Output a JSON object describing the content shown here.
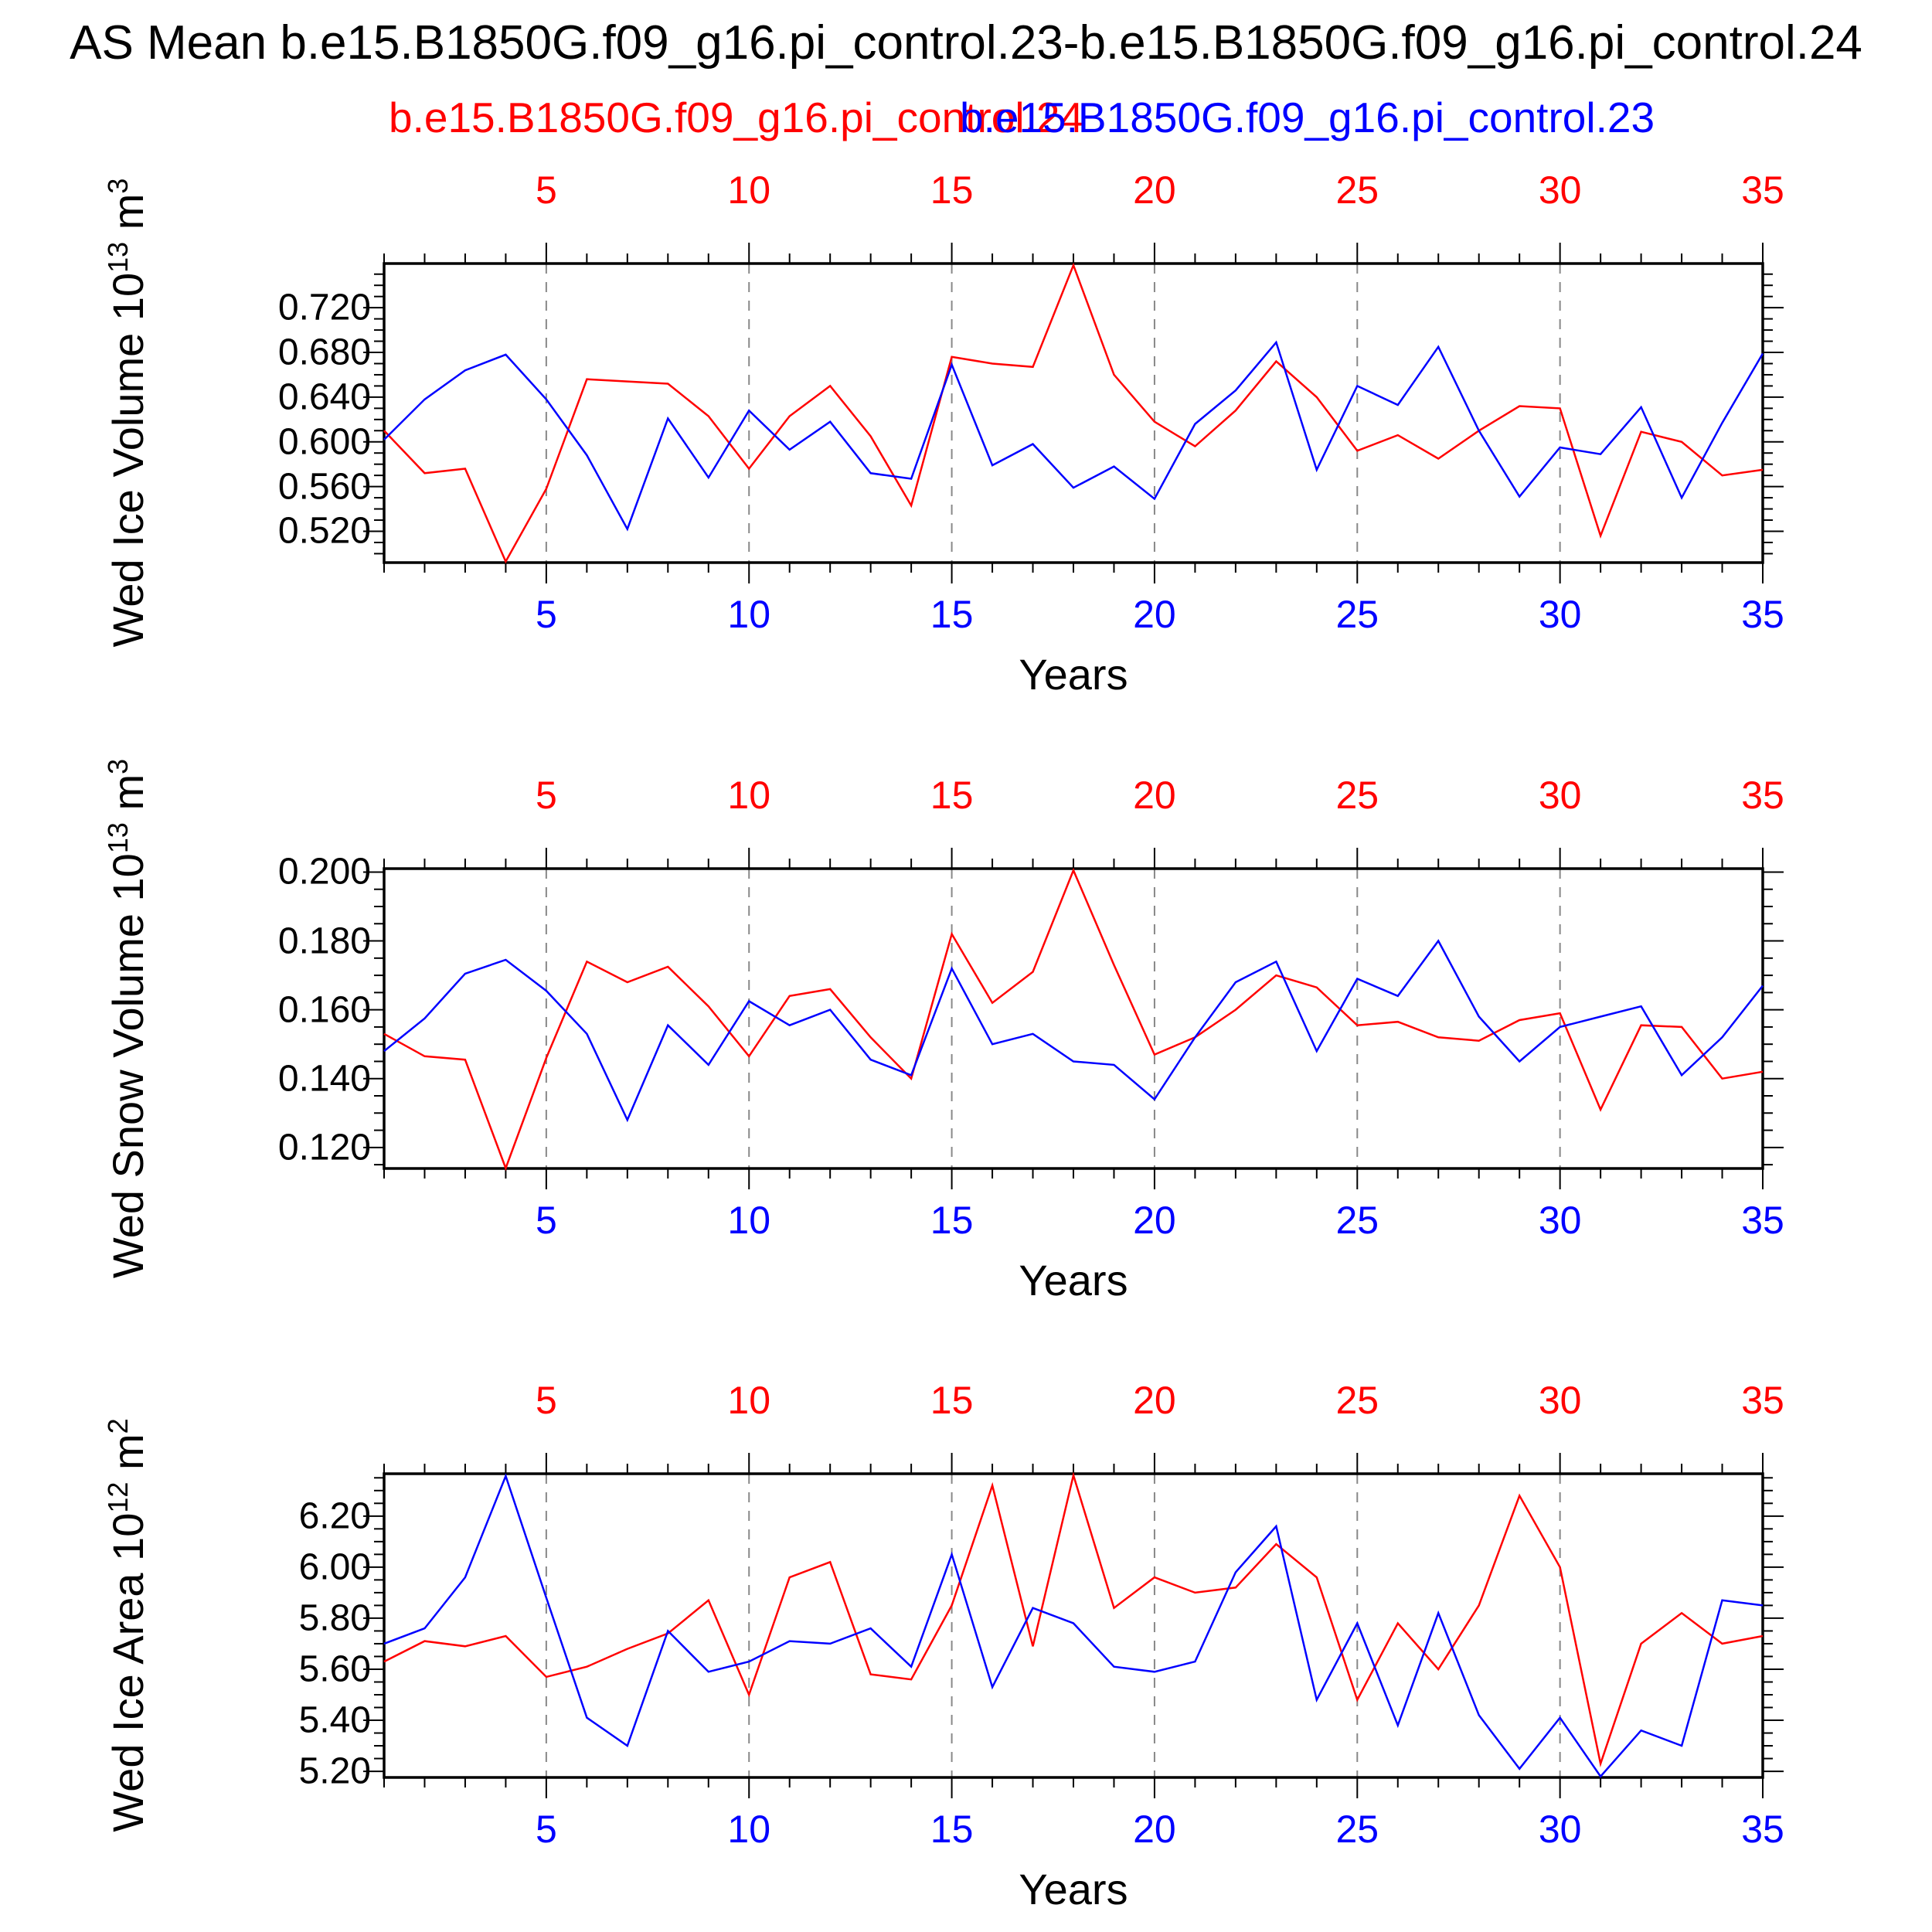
{
  "title": "AS Mean b.e15.B1850G.f09_g16.pi_control.23-b.e15.B1850G.f09_g16.pi_control.24",
  "legend": {
    "series1": "b.e15.B1850G.f09_g16.pi_control.24",
    "series2": "b.e15.B1850G.f09_g16.pi_control.23"
  },
  "colors": {
    "series1": "#ff0000",
    "series2": "#0000ff",
    "grid": "#888888",
    "axis": "#000000"
  },
  "x_tick_labels": [
    "5",
    "10",
    "15",
    "20",
    "25",
    "30",
    "35"
  ],
  "chart_data": [
    {
      "type": "line",
      "ylabel": {
        "text": "Wed Ice Volume 10",
        "exp": "13",
        "unit": " m",
        "unit_exp": "3"
      },
      "xlabel": "Years",
      "x_start": 1,
      "x_end": 35,
      "ylim": [
        0.492,
        0.7595
      ],
      "yticks": [
        "0.520",
        "0.560",
        "0.600",
        "0.640",
        "0.680",
        "0.720"
      ],
      "ytick_values": [
        0.52,
        0.56,
        0.6,
        0.64,
        0.68,
        0.72
      ],
      "minor_step": 0.01,
      "grid_years": [
        5,
        10,
        15,
        20,
        25,
        30
      ],
      "series": [
        {
          "name": "red-series-ice-volume",
          "color_key": "series1",
          "values": [
            0.61,
            0.572,
            0.576,
            0.493,
            0.558,
            0.656,
            0.654,
            0.652,
            0.623,
            0.576,
            0.623,
            0.65,
            0.605,
            0.543,
            0.676,
            0.67,
            0.667,
            0.758,
            0.66,
            0.618,
            0.596,
            0.628,
            0.672,
            0.64,
            0.592,
            0.606,
            0.585,
            0.61,
            0.632,
            0.63,
            0.516,
            0.609,
            0.6,
            0.57,
            0.575
          ]
        },
        {
          "name": "blue-series-ice-volume",
          "color_key": "series2",
          "values": [
            0.602,
            0.638,
            0.664,
            0.678,
            0.638,
            0.588,
            0.522,
            0.621,
            0.568,
            0.628,
            0.593,
            0.618,
            0.572,
            0.567,
            0.669,
            0.579,
            0.598,
            0.559,
            0.578,
            0.549,
            0.616,
            0.646,
            0.689,
            0.575,
            0.65,
            0.633,
            0.685,
            0.61,
            0.551,
            0.595,
            0.589,
            0.631,
            0.55,
            0.617,
            0.679
          ]
        }
      ]
    },
    {
      "type": "line",
      "ylabel": {
        "text": "Wed Snow Volume 10",
        "exp": "13",
        "unit": " m",
        "unit_exp": "3"
      },
      "xlabel": "Years",
      "x_start": 1,
      "x_end": 35,
      "ylim": [
        0.1139,
        0.201
      ],
      "yticks": [
        "0.120",
        "0.140",
        "0.160",
        "0.180",
        "0.200"
      ],
      "ytick_values": [
        0.12,
        0.14,
        0.16,
        0.18,
        0.2
      ],
      "minor_step": 0.005,
      "grid_years": [
        5,
        10,
        15,
        20,
        25,
        30
      ],
      "series": [
        {
          "name": "red-series-snow-volume",
          "color_key": "series1",
          "values": [
            0.153,
            0.1465,
            0.1455,
            0.114,
            0.146,
            0.174,
            0.168,
            0.1725,
            0.161,
            0.1465,
            0.164,
            0.166,
            0.152,
            0.14,
            0.182,
            0.162,
            0.171,
            0.2005,
            0.173,
            0.147,
            0.152,
            0.16,
            0.17,
            0.1665,
            0.1555,
            0.1565,
            0.152,
            0.151,
            0.157,
            0.159,
            0.131,
            0.1555,
            0.155,
            0.14,
            0.142
          ]
        },
        {
          "name": "blue-series-snow-volume",
          "color_key": "series2",
          "values": [
            0.148,
            0.1575,
            0.1705,
            0.1745,
            0.1655,
            0.153,
            0.128,
            0.1555,
            0.144,
            0.1625,
            0.1555,
            0.16,
            0.1455,
            0.141,
            0.172,
            0.15,
            0.153,
            0.145,
            0.144,
            0.134,
            0.152,
            0.168,
            0.174,
            0.148,
            0.169,
            0.164,
            0.18,
            0.158,
            0.145,
            0.155,
            0.158,
            0.161,
            0.141,
            0.152,
            0.167
          ]
        }
      ]
    },
    {
      "type": "line",
      "ylabel": {
        "text": "Wed Ice Area 10",
        "exp": "12",
        "unit": " m",
        "unit_exp": "2"
      },
      "xlabel": "Years",
      "x_start": 1,
      "x_end": 35,
      "ylim": [
        5.176,
        6.366
      ],
      "yticks": [
        "5.20",
        "5.40",
        "5.60",
        "5.80",
        "6.00",
        "6.20"
      ],
      "ytick_values": [
        5.2,
        5.4,
        5.6,
        5.8,
        6.0,
        6.2
      ],
      "minor_step": 0.05,
      "grid_years": [
        5,
        10,
        15,
        20,
        25,
        30
      ],
      "series": [
        {
          "name": "red-series-ice-area",
          "color_key": "series1",
          "values": [
            5.63,
            5.71,
            5.69,
            5.73,
            5.57,
            5.61,
            5.68,
            5.74,
            5.87,
            5.5,
            5.96,
            6.02,
            5.58,
            5.56,
            5.85,
            6.32,
            5.69,
            6.36,
            5.84,
            5.96,
            5.9,
            5.92,
            6.09,
            5.96,
            5.48,
            5.78,
            5.6,
            5.85,
            6.28,
            6.0,
            5.23,
            5.7,
            5.82,
            5.7,
            5.73
          ]
        },
        {
          "name": "blue-series-ice-area",
          "color_key": "series2",
          "values": [
            5.7,
            5.76,
            5.96,
            6.357,
            5.88,
            5.41,
            5.3,
            5.75,
            5.59,
            5.63,
            5.71,
            5.7,
            5.76,
            5.61,
            6.05,
            5.53,
            5.84,
            5.78,
            5.61,
            5.59,
            5.63,
            5.98,
            6.16,
            5.48,
            5.78,
            5.38,
            5.82,
            5.42,
            5.21,
            5.41,
            5.18,
            5.36,
            5.3,
            5.87,
            5.85
          ]
        }
      ]
    }
  ]
}
